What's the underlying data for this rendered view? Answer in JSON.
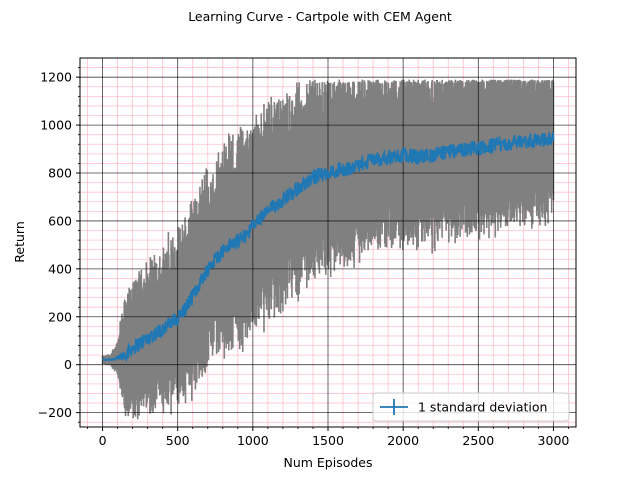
{
  "chart_data": {
    "type": "line",
    "title": "Learning Curve - Cartpole with CEM Agent",
    "xlabel": "Num Episodes",
    "ylabel": "Return",
    "xlim": [
      -150,
      3150
    ],
    "ylim": [
      -260,
      1280
    ],
    "x_ticks": [
      0,
      500,
      1000,
      1500,
      2000,
      2500,
      3000
    ],
    "y_ticks": [
      -200,
      0,
      200,
      400,
      600,
      800,
      1000,
      1200
    ],
    "x_tick_labels": [
      "0",
      "500",
      "1000",
      "1500",
      "2000",
      "2500",
      "3000"
    ],
    "y_tick_labels": [
      "−200",
      "0",
      "200",
      "400",
      "600",
      "800",
      "1000",
      "1200"
    ],
    "grid": {
      "major": true,
      "minor": true,
      "major_color": "#000000",
      "minor_color": "#ffc0cb"
    },
    "legend": {
      "position": "lower-right",
      "label": "1 standard deviation"
    },
    "series": [
      {
        "name": "1 standard deviation",
        "color": "#1f77b4",
        "error_color": "#808080",
        "x": [
          0,
          50,
          100,
          150,
          200,
          250,
          300,
          350,
          400,
          450,
          500,
          550,
          600,
          650,
          700,
          750,
          800,
          850,
          900,
          950,
          1000,
          1050,
          1100,
          1150,
          1200,
          1250,
          1300,
          1350,
          1400,
          1450,
          1500,
          1550,
          1600,
          1650,
          1700,
          1750,
          1800,
          1850,
          1900,
          1950,
          2000,
          2050,
          2100,
          2150,
          2200,
          2250,
          2300,
          2350,
          2400,
          2450,
          2500,
          2550,
          2600,
          2650,
          2700,
          2750,
          2800,
          2850,
          2900,
          2950,
          3000
        ],
        "y": [
          20,
          22,
          25,
          45,
          70,
          90,
          110,
          130,
          150,
          170,
          195,
          235,
          285,
          345,
          400,
          440,
          475,
          500,
          515,
          540,
          580,
          610,
          640,
          665,
          690,
          715,
          735,
          760,
          780,
          795,
          805,
          810,
          815,
          825,
          835,
          845,
          855,
          860,
          865,
          870,
          875,
          870,
          865,
          870,
          875,
          880,
          885,
          890,
          895,
          900,
          905,
          910,
          915,
          920,
          925,
          930,
          935,
          935,
          940,
          940,
          940
        ],
        "err": [
          15,
          20,
          60,
          200,
          230,
          240,
          250,
          260,
          270,
          280,
          290,
          300,
          310,
          320,
          330,
          340,
          350,
          355,
          360,
          362,
          365,
          365,
          365,
          365,
          360,
          355,
          350,
          345,
          340,
          335,
          330,
          325,
          320,
          318,
          316,
          314,
          312,
          310,
          308,
          306,
          304,
          302,
          300,
          298,
          296,
          294,
          292,
          290,
          288,
          286,
          284,
          282,
          280,
          278,
          276,
          274,
          272,
          270,
          268,
          266,
          264
        ],
        "cap": 1190
      }
    ]
  }
}
